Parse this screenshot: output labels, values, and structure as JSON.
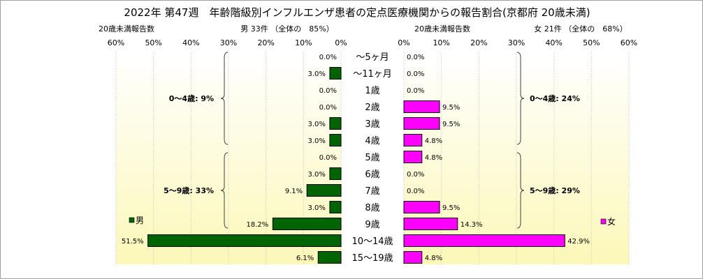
{
  "chart_data": {
    "type": "bar",
    "title": "2022年 第47週　年齢階級別インフルエンザ患者の定点医療機関からの報告割合(京都府 20歳未満)",
    "categories": [
      "～5ヶ月",
      "～11ヶ月",
      "1歳",
      "2歳",
      "3歳",
      "4歳",
      "5歳",
      "6歳",
      "7歳",
      "8歳",
      "9歳",
      "10～14歳",
      "15～19歳"
    ],
    "left": {
      "caption": "20歳未満報告数",
      "header": "男 33件 （全体の　85%）",
      "legend": "男",
      "color": "#006400",
      "xlim": [
        0,
        60
      ],
      "ticks": [
        "60%",
        "50%",
        "40%",
        "30%",
        "20%",
        "10%",
        "0%"
      ],
      "values": [
        0.0,
        3.0,
        0.0,
        0.0,
        3.0,
        3.0,
        0.0,
        3.0,
        9.1,
        3.0,
        18.2,
        51.5,
        6.1
      ],
      "labels": [
        "0.0%",
        "3.0%",
        "0.0%",
        "0.0%",
        "3.0%",
        "3.0%",
        "0.0%",
        "3.0%",
        "9.1%",
        "3.0%",
        "18.2%",
        "51.5%",
        "6.1%"
      ],
      "groups": [
        {
          "label": "0～4歳: 9%",
          "from": 0,
          "to": 5
        },
        {
          "label": "5～9歳: 33%",
          "from": 6,
          "to": 10
        }
      ]
    },
    "right": {
      "caption": "20歳未満報告数",
      "header": "女 21件 （全体の　68%）",
      "legend": "女",
      "color": "#ff00ff",
      "xlim": [
        0,
        60
      ],
      "ticks": [
        "0%",
        "10%",
        "20%",
        "30%",
        "40%",
        "50%",
        "60%"
      ],
      "values": [
        0.0,
        0.0,
        0.0,
        9.5,
        9.5,
        4.8,
        4.8,
        0.0,
        0.0,
        9.5,
        14.3,
        42.9,
        4.8
      ],
      "labels": [
        "0.0%",
        "0.0%",
        "0.0%",
        "9.5%",
        "9.5%",
        "4.8%",
        "4.8%",
        "0.0%",
        "0.0%",
        "9.5%",
        "14.3%",
        "42.9%",
        "4.8%"
      ],
      "groups": [
        {
          "label": "0～4歳: 24%",
          "from": 0,
          "to": 5
        },
        {
          "label": "5～9歳: 29%",
          "from": 6,
          "to": 10
        }
      ]
    },
    "grid": true
  }
}
